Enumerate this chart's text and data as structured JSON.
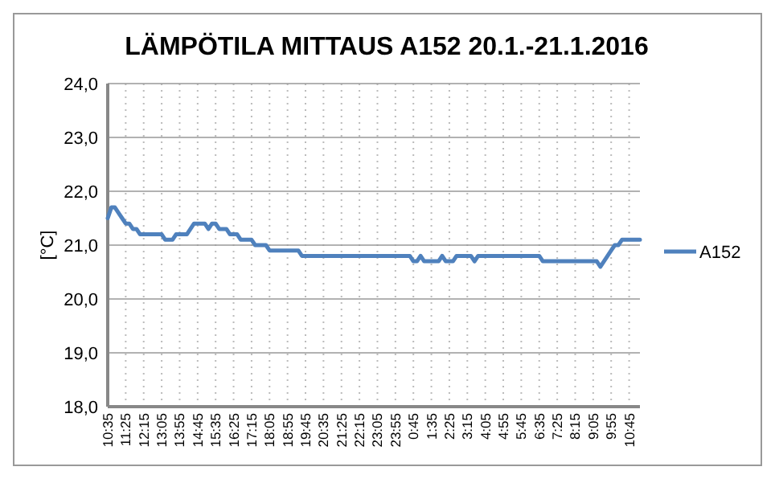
{
  "chart_data": {
    "type": "line",
    "title": "LÄMPÖTILA MITTAUS A152 20.1.-21.1.2016",
    "ylabel": "[°C]",
    "categories": [
      "10:35",
      null,
      null,
      null,
      null,
      "11:25",
      null,
      null,
      null,
      null,
      "12:15",
      null,
      null,
      null,
      null,
      "13:05",
      null,
      null,
      null,
      null,
      "13:55",
      null,
      null,
      null,
      null,
      "14:45",
      null,
      null,
      null,
      null,
      "15:35",
      null,
      null,
      null,
      null,
      "16:25",
      null,
      null,
      null,
      null,
      "17:15",
      null,
      null,
      null,
      null,
      "18:05",
      null,
      null,
      null,
      null,
      "18:55",
      null,
      null,
      null,
      null,
      "19:45",
      null,
      null,
      null,
      null,
      "20:35",
      null,
      null,
      null,
      null,
      "21:25",
      null,
      null,
      null,
      null,
      "22:15",
      null,
      null,
      null,
      null,
      "23:05",
      null,
      null,
      null,
      null,
      "23:55",
      null,
      null,
      null,
      null,
      "0:45",
      null,
      null,
      null,
      null,
      "1:35",
      null,
      null,
      null,
      null,
      "2:25",
      null,
      null,
      null,
      null,
      "3:15",
      null,
      null,
      null,
      null,
      "4:05",
      null,
      null,
      null,
      null,
      "4:55",
      null,
      null,
      null,
      null,
      "5:45",
      null,
      null,
      null,
      null,
      "6:35",
      null,
      null,
      null,
      null,
      "7:25",
      null,
      null,
      null,
      null,
      "8:15",
      null,
      null,
      null,
      null,
      "9:05",
      null,
      null,
      null,
      null,
      "9:55",
      null,
      null,
      null,
      null,
      "10:45",
      null,
      null,
      null
    ],
    "series": [
      {
        "name": "A152",
        "color": "#4f81bd",
        "values": [
          21.5,
          21.7,
          21.7,
          21.6,
          21.5,
          21.4,
          21.4,
          21.3,
          21.3,
          21.2,
          21.2,
          21.2,
          21.2,
          21.2,
          21.2,
          21.2,
          21.1,
          21.1,
          21.1,
          21.2,
          21.2,
          21.2,
          21.2,
          21.3,
          21.4,
          21.4,
          21.4,
          21.4,
          21.3,
          21.4,
          21.4,
          21.3,
          21.3,
          21.3,
          21.2,
          21.2,
          21.2,
          21.1,
          21.1,
          21.1,
          21.1,
          21.0,
          21.0,
          21.0,
          21.0,
          20.9,
          20.9,
          20.9,
          20.9,
          20.9,
          20.9,
          20.9,
          20.9,
          20.9,
          20.8,
          20.8,
          20.8,
          20.8,
          20.8,
          20.8,
          20.8,
          20.8,
          20.8,
          20.8,
          20.8,
          20.8,
          20.8,
          20.8,
          20.8,
          20.8,
          20.8,
          20.8,
          20.8,
          20.8,
          20.8,
          20.8,
          20.8,
          20.8,
          20.8,
          20.8,
          20.8,
          20.8,
          20.8,
          20.8,
          20.8,
          20.7,
          20.7,
          20.8,
          20.7,
          20.7,
          20.7,
          20.7,
          20.7,
          20.8,
          20.7,
          20.7,
          20.7,
          20.8,
          20.8,
          20.8,
          20.8,
          20.8,
          20.7,
          20.8,
          20.8,
          20.8,
          20.8,
          20.8,
          20.8,
          20.8,
          20.8,
          20.8,
          20.8,
          20.8,
          20.8,
          20.8,
          20.8,
          20.8,
          20.8,
          20.8,
          20.8,
          20.7,
          20.7,
          20.7,
          20.7,
          20.7,
          20.7,
          20.7,
          20.7,
          20.7,
          20.7,
          20.7,
          20.7,
          20.7,
          20.7,
          20.7,
          20.7,
          20.6,
          20.7,
          20.8,
          20.9,
          21.0,
          21.0,
          21.1,
          21.1,
          21.1,
          21.1,
          21.1,
          21.1
        ]
      }
    ],
    "ylim": [
      18,
      24
    ],
    "yticks": [
      {
        "value": 18,
        "label": "18,0"
      },
      {
        "value": 19,
        "label": "19,0"
      },
      {
        "value": 20,
        "label": "20,0"
      },
      {
        "value": 21,
        "label": "21,0"
      },
      {
        "value": 22,
        "label": "22,0"
      },
      {
        "value": 23,
        "label": "23,0"
      },
      {
        "value": 24,
        "label": "24,0"
      }
    ],
    "grid": true,
    "legend": "right",
    "marker": "none",
    "line_style": "solid"
  }
}
